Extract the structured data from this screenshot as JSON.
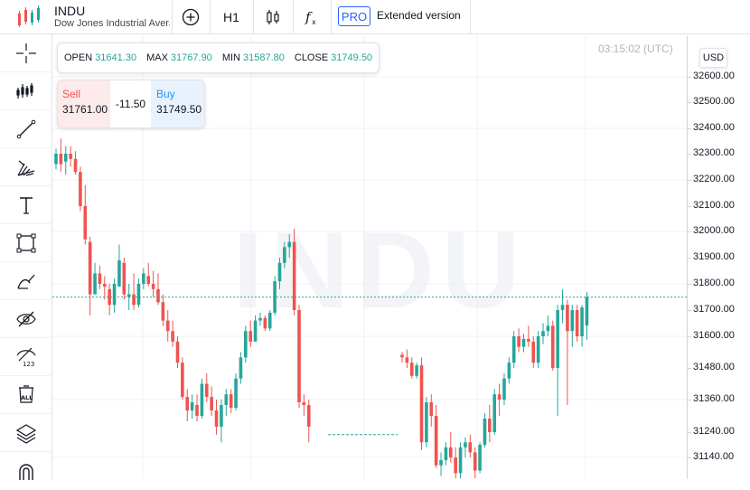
{
  "header": {
    "symbol": "INDU",
    "description": "Dow Jones Industrial Average",
    "timeframe": "H1",
    "pro_label": "PRO",
    "extended_label": "Extended version",
    "add_icon": "plus-circle-icon",
    "candles_icon": "candlestick-icon",
    "indicator_icon": "fx-icon"
  },
  "tools": [
    {
      "name": "crosshair-icon"
    },
    {
      "name": "candle-settings-icon"
    },
    {
      "name": "trend-line-icon"
    },
    {
      "name": "pitchfork-icon"
    },
    {
      "name": "text-icon"
    },
    {
      "name": "rectangle-icon"
    },
    {
      "name": "brush-icon"
    },
    {
      "name": "hide-drawings-icon"
    },
    {
      "name": "hide-values-icon"
    },
    {
      "name": "delete-all-icon"
    },
    {
      "name": "layers-icon"
    },
    {
      "name": "magnet-icon"
    }
  ],
  "tool_labels": {
    "hide_values": "123",
    "delete_all": "ALL"
  },
  "ohlc": {
    "open_label": "OPEN",
    "open": "31641.30",
    "max_label": "MAX",
    "max": "31767.90",
    "min_label": "MIN",
    "min": "31587.80",
    "close_label": "CLOSE",
    "close": "31749.50"
  },
  "trade": {
    "sell_label": "Sell",
    "sell_price": "31761.00",
    "spread": "-11.50",
    "buy_label": "Buy",
    "buy_price": "31749.50"
  },
  "time": "03:15:02 (UTC)",
  "currency": "USD",
  "watermark": "INDU",
  "colors": {
    "up": "#26a69a",
    "down": "#ef5350",
    "grid": "#eef0f4",
    "current_line": "#26a69a"
  },
  "chart_data": {
    "type": "candlestick",
    "y_ticks": [
      "32600.00",
      "32500.00",
      "32400.00",
      "32300.00",
      "32200.00",
      "32100.00",
      "32000.00",
      "31900.00",
      "31800.00",
      "31700.00",
      "31600.00",
      "31480.00",
      "31360.00",
      "31240.00",
      "31140.00"
    ],
    "current_price": 31749.5,
    "candles": [
      [
        32260,
        32320,
        32240,
        32300
      ],
      [
        32300,
        32360,
        32230,
        32260
      ],
      [
        32270,
        32330,
        32220,
        32300
      ],
      [
        32300,
        32330,
        32250,
        32280
      ],
      [
        32280,
        32310,
        32220,
        32230
      ],
      [
        32230,
        32250,
        32080,
        32100
      ],
      [
        32100,
        32180,
        31950,
        31970
      ],
      [
        31960,
        31980,
        31680,
        31760
      ],
      [
        31760,
        31880,
        31760,
        31840
      ],
      [
        31840,
        31870,
        31780,
        31800
      ],
      [
        31800,
        31830,
        31740,
        31790
      ],
      [
        31780,
        31800,
        31680,
        31720
      ],
      [
        31720,
        31820,
        31690,
        31800
      ],
      [
        31790,
        31950,
        31790,
        31890
      ],
      [
        31880,
        31900,
        31740,
        31760
      ],
      [
        31750,
        31800,
        31700,
        31760
      ],
      [
        31760,
        31840,
        31700,
        31720
      ],
      [
        31720,
        31820,
        31710,
        31800
      ],
      [
        31800,
        31860,
        31780,
        31840
      ],
      [
        31830,
        31880,
        31790,
        31800
      ],
      [
        31800,
        31850,
        31750,
        31780
      ],
      [
        31780,
        31840,
        31720,
        31730
      ],
      [
        31730,
        31760,
        31640,
        31660
      ],
      [
        31660,
        31700,
        31580,
        31620
      ],
      [
        31620,
        31660,
        31560,
        31580
      ],
      [
        31580,
        31600,
        31480,
        31500
      ],
      [
        31500,
        31520,
        31360,
        31370
      ],
      [
        31370,
        31400,
        31280,
        31320
      ],
      [
        31320,
        31380,
        31290,
        31350
      ],
      [
        31340,
        31380,
        31280,
        31300
      ],
      [
        31300,
        31440,
        31290,
        31420
      ],
      [
        31420,
        31460,
        31350,
        31370
      ],
      [
        31370,
        31410,
        31300,
        31320
      ],
      [
        31320,
        31360,
        31230,
        31260
      ],
      [
        31260,
        31360,
        31200,
        31340
      ],
      [
        31340,
        31400,
        31300,
        31380
      ],
      [
        31380,
        31400,
        31310,
        31330
      ],
      [
        31330,
        31460,
        31320,
        31440
      ],
      [
        31440,
        31540,
        31420,
        31520
      ],
      [
        31520,
        31640,
        31500,
        31620
      ],
      [
        31620,
        31660,
        31560,
        31580
      ],
      [
        31580,
        31680,
        31580,
        31660
      ],
      [
        31660,
        31690,
        31640,
        31670
      ],
      [
        31670,
        31680,
        31620,
        31630
      ],
      [
        31630,
        31700,
        31620,
        31690
      ],
      [
        31690,
        31830,
        31680,
        31810
      ],
      [
        31810,
        31900,
        31780,
        31880
      ],
      [
        31880,
        31960,
        31860,
        31940
      ],
      [
        31940,
        31990,
        31900,
        31960
      ],
      [
        31960,
        32010,
        31680,
        31700
      ],
      [
        31700,
        31720,
        31330,
        31350
      ],
      [
        31350,
        31380,
        31300,
        31340
      ],
      [
        31340,
        31360,
        31200,
        31260
      ],
      [
        31530,
        31540,
        31500,
        31520
      ],
      [
        31520,
        31550,
        31480,
        31500
      ],
      [
        31500,
        31520,
        31440,
        31450
      ],
      [
        31450,
        31500,
        31440,
        31490
      ],
      [
        31490,
        31520,
        31170,
        31200
      ],
      [
        31200,
        31370,
        31180,
        31350
      ],
      [
        31350,
        31380,
        31260,
        31300
      ],
      [
        31300,
        31340,
        31100,
        31110
      ],
      [
        31110,
        31160,
        31070,
        31130
      ],
      [
        31130,
        31200,
        31110,
        31180
      ],
      [
        31180,
        31240,
        31120,
        31140
      ],
      [
        31140,
        31180,
        31060,
        31080
      ],
      [
        31080,
        31200,
        31060,
        31180
      ],
      [
        31180,
        31220,
        31140,
        31200
      ],
      [
        31200,
        31230,
        31140,
        31160
      ],
      [
        31160,
        31180,
        31060,
        31090
      ],
      [
        31090,
        31200,
        31080,
        31190
      ],
      [
        31190,
        31310,
        31180,
        31290
      ],
      [
        31290,
        31340,
        31200,
        31240
      ],
      [
        31240,
        31400,
        31230,
        31380
      ],
      [
        31380,
        31420,
        31300,
        31360
      ],
      [
        31360,
        31460,
        31340,
        31440
      ],
      [
        31440,
        31520,
        31420,
        31500
      ],
      [
        31500,
        31620,
        31480,
        31600
      ],
      [
        31600,
        31630,
        31540,
        31560
      ],
      [
        31560,
        31610,
        31540,
        31590
      ],
      [
        31590,
        31640,
        31560,
        31580
      ],
      [
        31580,
        31600,
        31480,
        31500
      ],
      [
        31500,
        31620,
        31480,
        31600
      ],
      [
        31600,
        31650,
        31570,
        31620
      ],
      [
        31620,
        31680,
        31600,
        31640
      ],
      [
        31640,
        31660,
        31470,
        31480
      ],
      [
        31480,
        31720,
        31300,
        31700
      ],
      [
        31700,
        31780,
        31650,
        31720
      ],
      [
        31720,
        31740,
        31340,
        31620
      ],
      [
        31620,
        31720,
        31560,
        31700
      ],
      [
        31700,
        31720,
        31580,
        31600
      ],
      [
        31600,
        31720,
        31560,
        31710
      ],
      [
        31641.3,
        31767.9,
        31587.8,
        31749.5
      ]
    ],
    "gap_level": 31230
  }
}
